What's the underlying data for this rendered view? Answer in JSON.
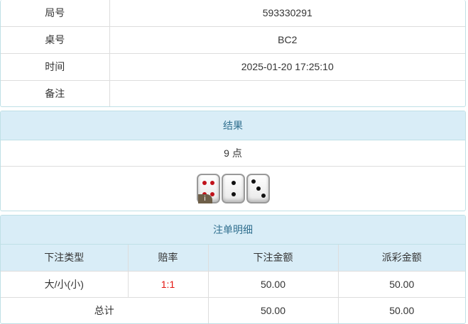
{
  "info": {
    "rows": [
      {
        "label": "局号",
        "value": "593330291"
      },
      {
        "label": "桌号",
        "value": "BC2"
      },
      {
        "label": "时间",
        "value": "2025-01-20 17:25:10"
      },
      {
        "label": "备注",
        "value": ""
      }
    ]
  },
  "result": {
    "title": "结果",
    "points": "9 点",
    "dice": [
      4,
      2,
      3
    ],
    "info_badge": "i"
  },
  "bets": {
    "title": "注单明细",
    "headers": [
      "下注类型",
      "赔率",
      "下注金额",
      "派彩金额"
    ],
    "rows": [
      {
        "type": "大/小(小)",
        "odds": "1:1",
        "amount": "50.00",
        "payout": "50.00"
      }
    ],
    "total": {
      "label": "总计",
      "amount": "50.00",
      "payout": "50.00"
    }
  },
  "colors": {
    "header_bg": "#d9edf7",
    "header_text": "#31708f",
    "odds": "#e3130f"
  }
}
